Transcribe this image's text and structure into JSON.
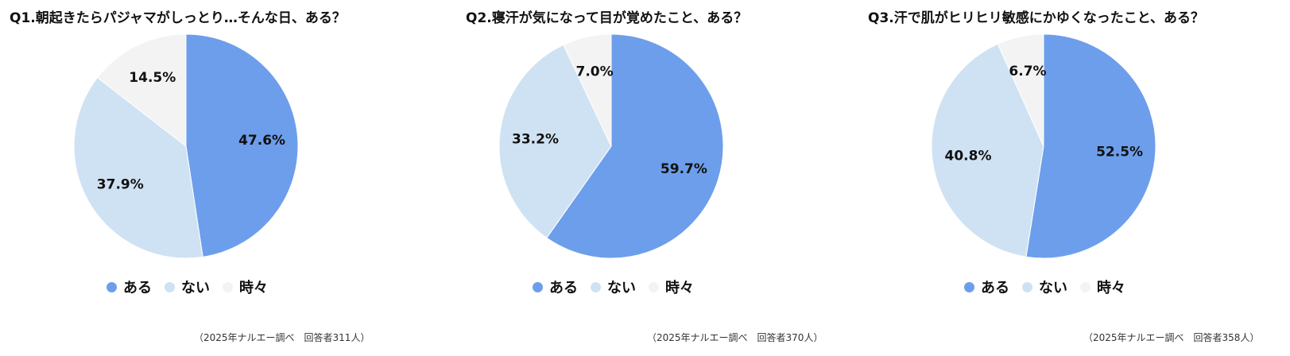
{
  "chart_data": [
    {
      "type": "pie",
      "title": "Q1.朝起きたらパジャマがしっとり…そんな日、ある？",
      "categories": [
        "ある",
        "ない",
        "時々"
      ],
      "values": [
        47.6,
        37.9,
        14.5
      ],
      "value_labels": [
        "47.6%",
        "37.9%",
        "14.5%"
      ],
      "legend_position": "bottom",
      "colors": [
        "#6D9EEB",
        "#CFE2F3",
        "#F3F3F3"
      ],
      "source": "（2025年ナルエー調べ　回答者311人）"
    },
    {
      "type": "pie",
      "title": "Q2.寝汗が気になって目が覚めたこと、ある？",
      "categories": [
        "ある",
        "ない",
        "時々"
      ],
      "values": [
        59.7,
        33.2,
        7.0
      ],
      "value_labels": [
        "59.7%",
        "33.2%",
        "7.0%"
      ],
      "legend_position": "bottom",
      "colors": [
        "#6D9EEB",
        "#CFE2F3",
        "#F3F3F3"
      ],
      "source": "（2025年ナルエー調べ　回答者370人）"
    },
    {
      "type": "pie",
      "title": "Q3.汗で肌がヒリヒリ敏感にかゆくなったこと、ある？",
      "categories": [
        "ある",
        "ない",
        "時々"
      ],
      "values": [
        52.5,
        40.8,
        6.7
      ],
      "value_labels": [
        "52.5%",
        "40.8%",
        "6.7%"
      ],
      "legend_position": "bottom",
      "colors": [
        "#6D9EEB",
        "#CFE2F3",
        "#F3F3F3"
      ],
      "source": "（2025年ナルエー調べ　回答者358人）"
    }
  ]
}
